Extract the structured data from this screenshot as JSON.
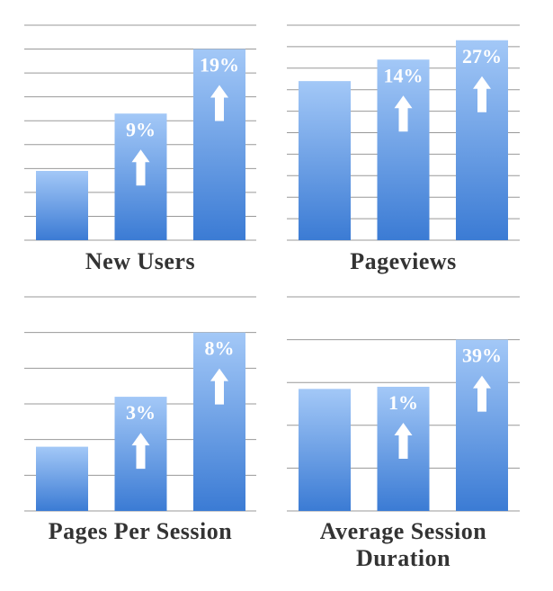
{
  "chart_data": [
    {
      "type": "bar",
      "title": "New Users",
      "values": [
        2.9,
        5.3,
        8.0
      ],
      "annotations": [
        null,
        "9%",
        "19%"
      ],
      "ylim": [
        0,
        9
      ],
      "yticks": [
        0,
        1,
        2,
        3,
        4,
        5,
        6,
        7,
        8,
        9
      ],
      "grid": true,
      "color": "#4a86dc"
    },
    {
      "type": "bar",
      "title": "Pageviews",
      "values": [
        7.4,
        8.4,
        9.3
      ],
      "annotations": [
        null,
        "14%",
        "27%"
      ],
      "ylim": [
        0,
        10
      ],
      "yticks": [
        0,
        1,
        2,
        3,
        4,
        5,
        6,
        7,
        8,
        9,
        10
      ],
      "grid": true,
      "color": "#4a86dc"
    },
    {
      "type": "bar",
      "title": "Pages Per Session",
      "values": [
        1.8,
        3.2,
        5.0
      ],
      "annotations": [
        null,
        "3%",
        "8%"
      ],
      "ylim": [
        0,
        6
      ],
      "yticks": [
        0,
        1,
        2,
        3,
        4,
        5,
        6
      ],
      "grid": true,
      "color": "#4a86dc"
    },
    {
      "type": "bar",
      "title": "Average Session Duration",
      "values": [
        2.85,
        2.9,
        4.0
      ],
      "annotations": [
        null,
        "1%",
        "39%"
      ],
      "ylim": [
        0,
        5
      ],
      "yticks": [
        0,
        1,
        2,
        3,
        4,
        5
      ],
      "grid": true,
      "color": "#4a86dc"
    }
  ]
}
